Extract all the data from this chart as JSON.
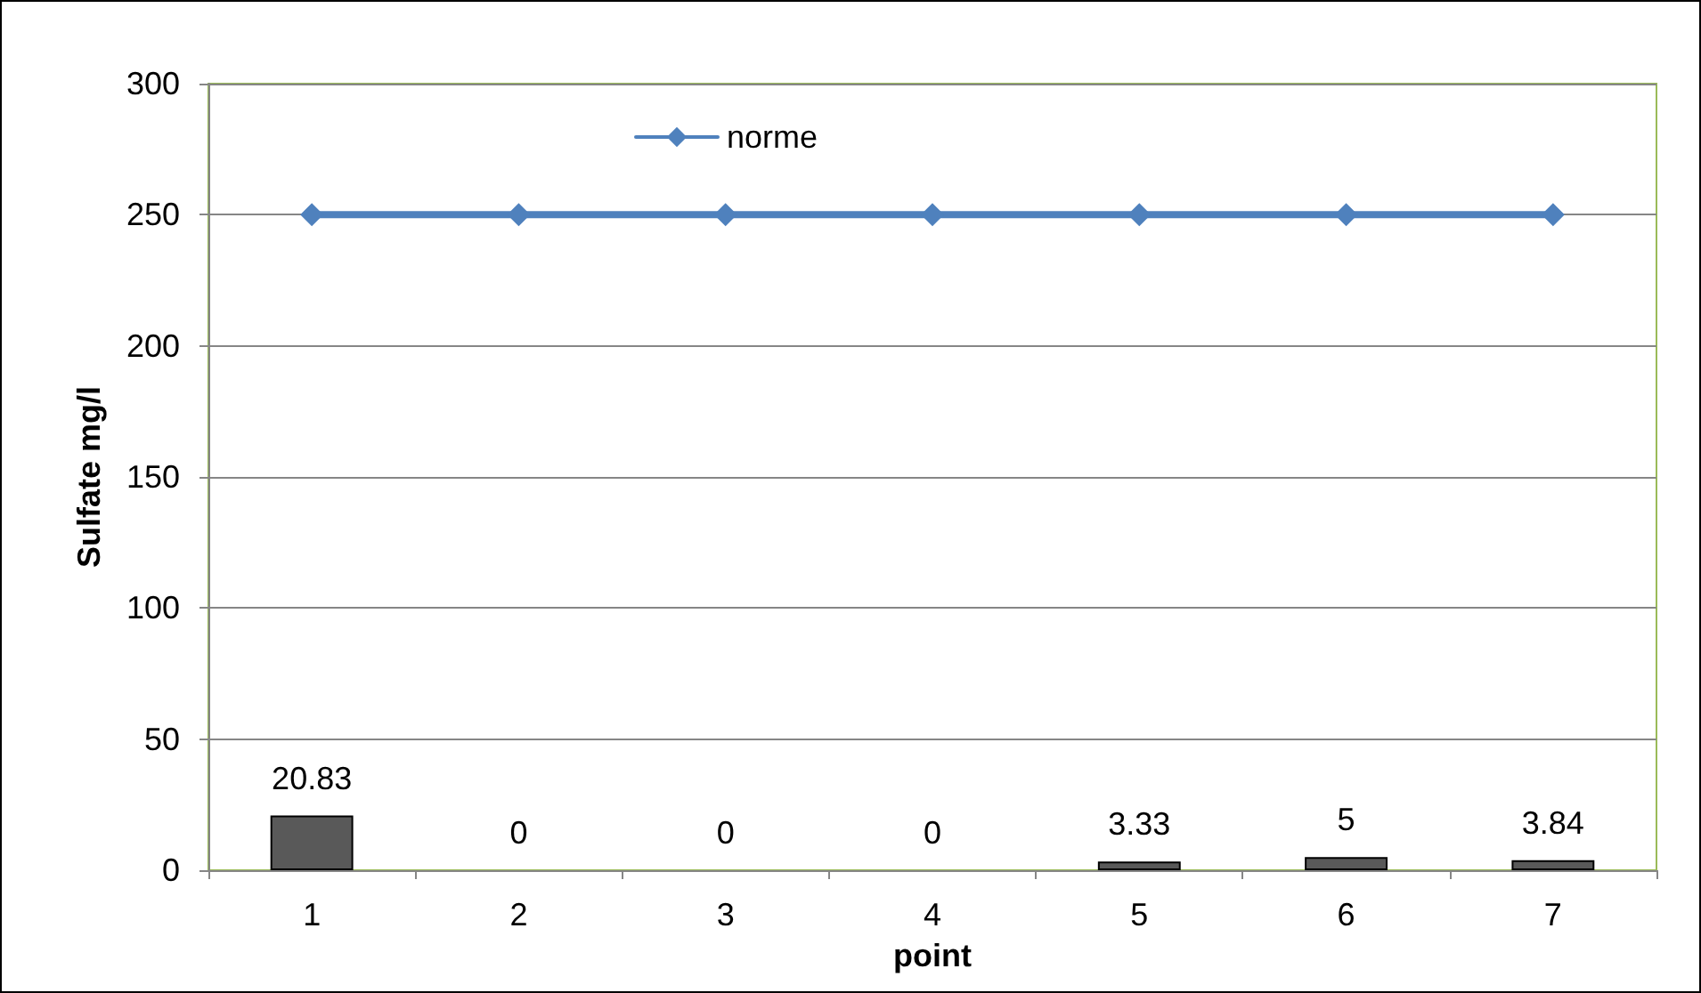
{
  "chart_data": {
    "type": "bar",
    "xlabel": "point",
    "ylabel": "Sulfate mg/l",
    "categories": [
      "1",
      "2",
      "3",
      "4",
      "5",
      "6",
      "7"
    ],
    "series": [
      {
        "color": "#595959",
        "values": [
          20.83,
          0,
          0,
          0,
          3.33,
          5,
          3.84
        ],
        "value_labels": [
          "20.83",
          "0",
          "0",
          "0",
          "3.33",
          "5",
          "3.84"
        ]
      },
      {
        "type": "line",
        "name": "norme",
        "color": "#4f81bd",
        "marker": "diamond",
        "line_style": "solid",
        "values": [
          250,
          250,
          250,
          250,
          250,
          250,
          250
        ]
      }
    ],
    "ylim": [
      0,
      300
    ],
    "yticks": [
      0,
      50,
      100,
      150,
      200,
      250,
      300
    ],
    "grid": "y",
    "legend": "top"
  }
}
